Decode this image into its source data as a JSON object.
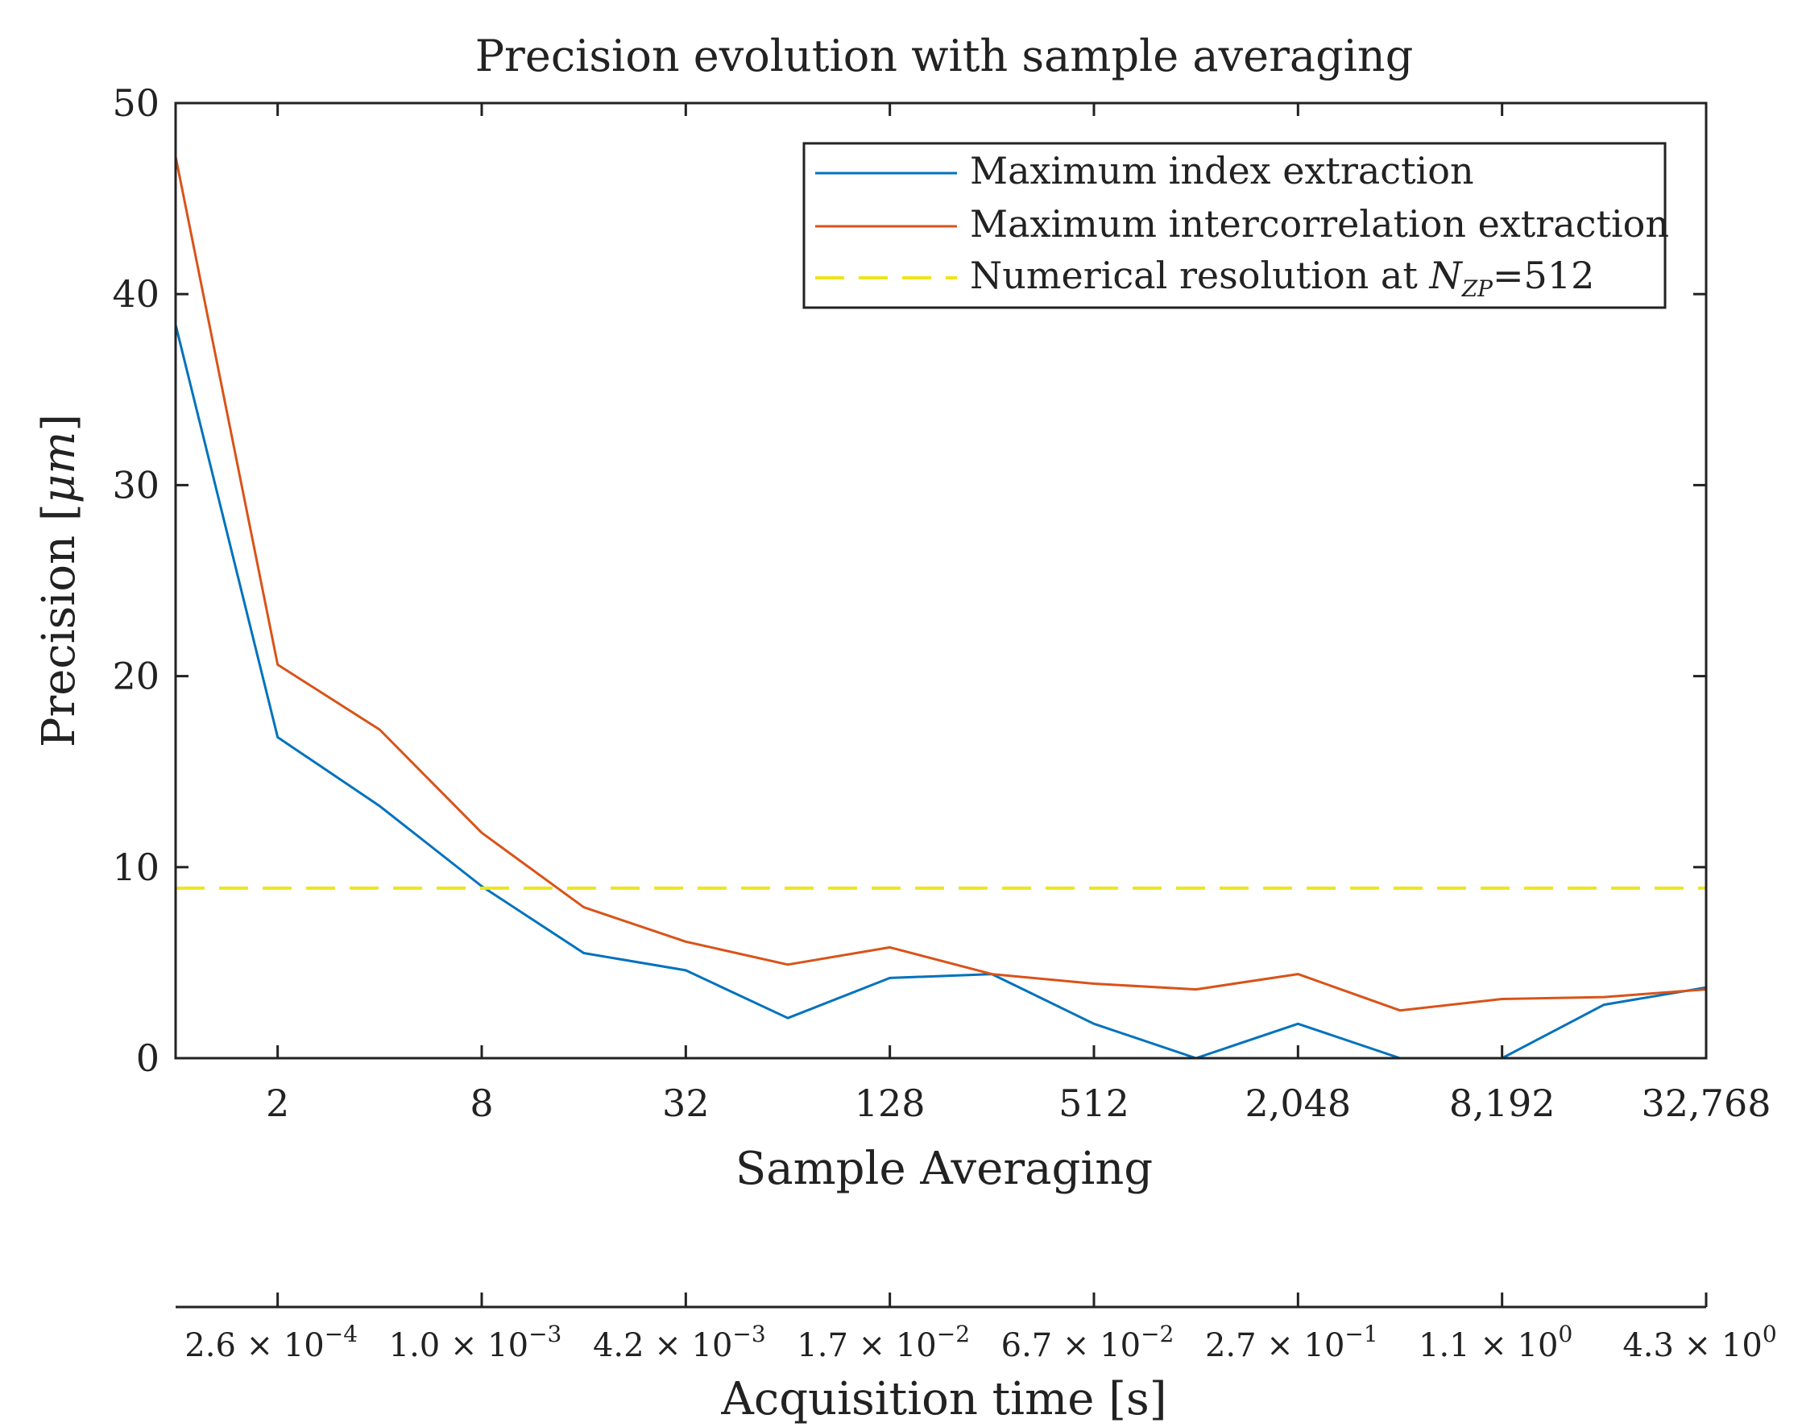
{
  "chart_data": {
    "type": "line",
    "title": "Precision evolution with sample averaging",
    "xlabel": "Sample Averaging",
    "ylabel": "Precision [",
    "ylabel_unit": "μm",
    "ylabel_close": "]",
    "x2label": "Acquisition time [s]",
    "x_scale": "log2",
    "xlim": [
      1,
      32768
    ],
    "ylim": [
      0,
      50
    ],
    "x": [
      1,
      2,
      4,
      8,
      16,
      32,
      64,
      128,
      256,
      512,
      1024,
      2048,
      4096,
      8192,
      16384,
      32768
    ],
    "x_tick_values": [
      2,
      8,
      32,
      128,
      512,
      2048,
      8192,
      32768
    ],
    "x_tick_labels": [
      "2",
      "8",
      "32",
      "128",
      "512",
      "2,048",
      "8,192",
      "32,768"
    ],
    "y_tick_values": [
      0,
      10,
      20,
      30,
      40,
      50
    ],
    "y_tick_labels": [
      "0",
      "10",
      "20",
      "30",
      "40",
      "50"
    ],
    "x2_ticks": [
      {
        "mantissa": "2.6",
        "times": "×",
        "base": "10",
        "exp": "−4"
      },
      {
        "mantissa": "1.0",
        "times": "×",
        "base": "10",
        "exp": "−3"
      },
      {
        "mantissa": "4.2",
        "times": "×",
        "base": "10",
        "exp": "−3"
      },
      {
        "mantissa": "1.7",
        "times": "×",
        "base": "10",
        "exp": "−2"
      },
      {
        "mantissa": "6.7",
        "times": "×",
        "base": "10",
        "exp": "−2"
      },
      {
        "mantissa": "2.7",
        "times": "×",
        "base": "10",
        "exp": "−1"
      },
      {
        "mantissa": "1.1",
        "times": "×",
        "base": "10",
        "exp": "0"
      },
      {
        "mantissa": "4.3",
        "times": "×",
        "base": "10",
        "exp": "0"
      }
    ],
    "series": [
      {
        "name": "Maximum index extraction",
        "color": "#0072BD",
        "style": "solid",
        "values": [
          38.4,
          16.8,
          13.2,
          9.0,
          5.5,
          4.6,
          2.1,
          4.2,
          4.4,
          1.8,
          0.0,
          1.8,
          0.0,
          0.0,
          2.8,
          3.7
        ]
      },
      {
        "name": "Maximum intercorrelation extraction",
        "color": "#D95319",
        "style": "solid",
        "values": [
          47.2,
          20.6,
          17.2,
          11.8,
          7.9,
          6.1,
          4.9,
          5.8,
          4.4,
          3.9,
          3.6,
          4.4,
          2.5,
          3.1,
          3.2,
          3.6
        ]
      },
      {
        "name": "Numerical resolution at ",
        "legend_math": {
          "symbol": "N",
          "subscript": "ZP",
          "suffix": "=512"
        },
        "color": "#EDE51B",
        "style": "dashed",
        "constant": 8.9
      }
    ],
    "legend_position": "top-right",
    "grid": false
  }
}
